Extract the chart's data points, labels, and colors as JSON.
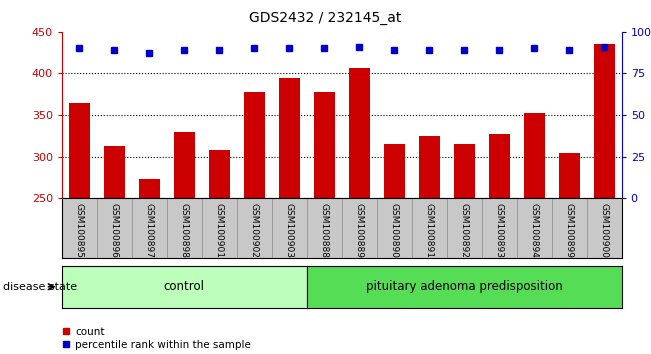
{
  "title": "GDS2432 / 232145_at",
  "samples": [
    "GSM100895",
    "GSM100896",
    "GSM100897",
    "GSM100898",
    "GSM100901",
    "GSM100902",
    "GSM100903",
    "GSM100888",
    "GSM100889",
    "GSM100890",
    "GSM100891",
    "GSM100892",
    "GSM100893",
    "GSM100894",
    "GSM100899",
    "GSM100900"
  ],
  "counts": [
    365,
    313,
    273,
    330,
    308,
    378,
    395,
    378,
    406,
    315,
    325,
    315,
    327,
    352,
    304,
    435
  ],
  "percentile_values": [
    430,
    428,
    425,
    428,
    428,
    430,
    430,
    430,
    432,
    428,
    428,
    428,
    428,
    430,
    428,
    432
  ],
  "n_control": 7,
  "n_disease": 9,
  "ylim_left": [
    250,
    450
  ],
  "ylim_right": [
    0,
    100
  ],
  "yticks_left": [
    250,
    300,
    350,
    400,
    450
  ],
  "yticks_right": [
    0,
    25,
    50,
    75,
    100
  ],
  "bar_color": "#cc0000",
  "dot_color": "#0000cc",
  "control_color": "#bbffbb",
  "disease_color": "#55dd55",
  "grid_color": "#000000",
  "bar_width": 0.6,
  "legend_count_label": "count",
  "legend_percentile_label": "percentile rank within the sample",
  "disease_state_label": "disease state",
  "control_label": "control",
  "disease_label": "pituitary adenoma predisposition",
  "background_color": "#ffffff",
  "tick_area_color": "#c8c8c8"
}
